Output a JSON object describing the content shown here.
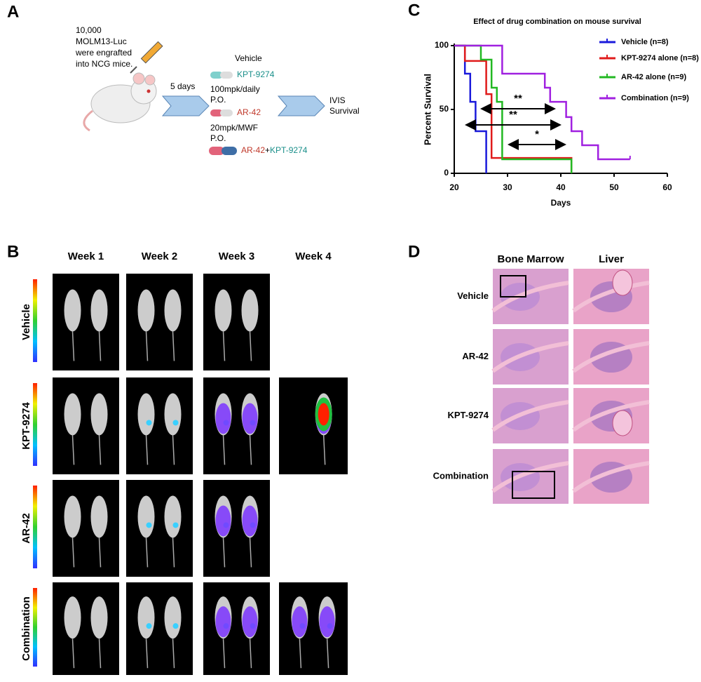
{
  "panel_a": {
    "letter": "A",
    "injection_note": [
      "10,000",
      "MOLM13-Luc",
      "were engrafted",
      "into NCG mice."
    ],
    "interval": "5 days",
    "treatments": [
      {
        "name": "Vehicle"
      },
      {
        "name": "KPT-9274",
        "dose": "100mpk/daily",
        "route": "P.O."
      },
      {
        "name": "AR-42",
        "dose": "20mpk/MWF",
        "route": "P.O."
      },
      {
        "name_parts": [
          "AR-42",
          "+",
          "KPT-9274"
        ]
      }
    ],
    "readout": [
      "IVIS",
      "Survival"
    ]
  },
  "panel_b": {
    "letter": "B",
    "weeks": [
      "Week 1",
      "Week 2",
      "Week 3",
      "Week 4"
    ],
    "groups": [
      "Vehicle",
      "KPT-9274",
      "AR-42",
      "Combination"
    ]
  },
  "chart_data": {
    "letter": "C",
    "type": "line",
    "step": true,
    "title": "Effect of drug combination on mouse survival",
    "x_label": "Days",
    "y_label": "Percent Survival",
    "xlim": [
      20,
      60
    ],
    "xticks": [
      20,
      30,
      40,
      50,
      60
    ],
    "ylim": [
      0,
      100
    ],
    "yticks": [
      0,
      50,
      100
    ],
    "legend": "upper right",
    "series": [
      {
        "name": "Vehicle (n=8)",
        "color": "#1a1adb",
        "x": [
          20,
          22,
          23,
          24,
          26
        ],
        "values": [
          100,
          78,
          56,
          33,
          0
        ]
      },
      {
        "name": "KPT-9274 alone (n=8)",
        "color": "#e01b1b",
        "x": [
          20,
          22,
          26,
          27,
          42
        ],
        "values": [
          100,
          88,
          62,
          12,
          0
        ]
      },
      {
        "name": "AR-42 alone (n=9)",
        "color": "#22b822",
        "x": [
          20,
          25,
          27,
          28,
          29,
          42
        ],
        "values": [
          100,
          89,
          67,
          56,
          11,
          0
        ]
      },
      {
        "name": "Combination (n=9)",
        "color": "#a020e0",
        "x": [
          20,
          29,
          37,
          38,
          41,
          42,
          44,
          47,
          53
        ],
        "values": [
          100,
          78,
          67,
          56,
          44,
          33,
          22,
          11,
          11
        ]
      }
    ],
    "annotations": [
      "**",
      "**",
      "*"
    ]
  },
  "panel_d": {
    "letter": "D",
    "tissues": [
      "Bone Marrow",
      "Liver"
    ],
    "groups": [
      "Vehicle",
      "AR-42",
      "KPT-9274",
      "Combination"
    ]
  }
}
